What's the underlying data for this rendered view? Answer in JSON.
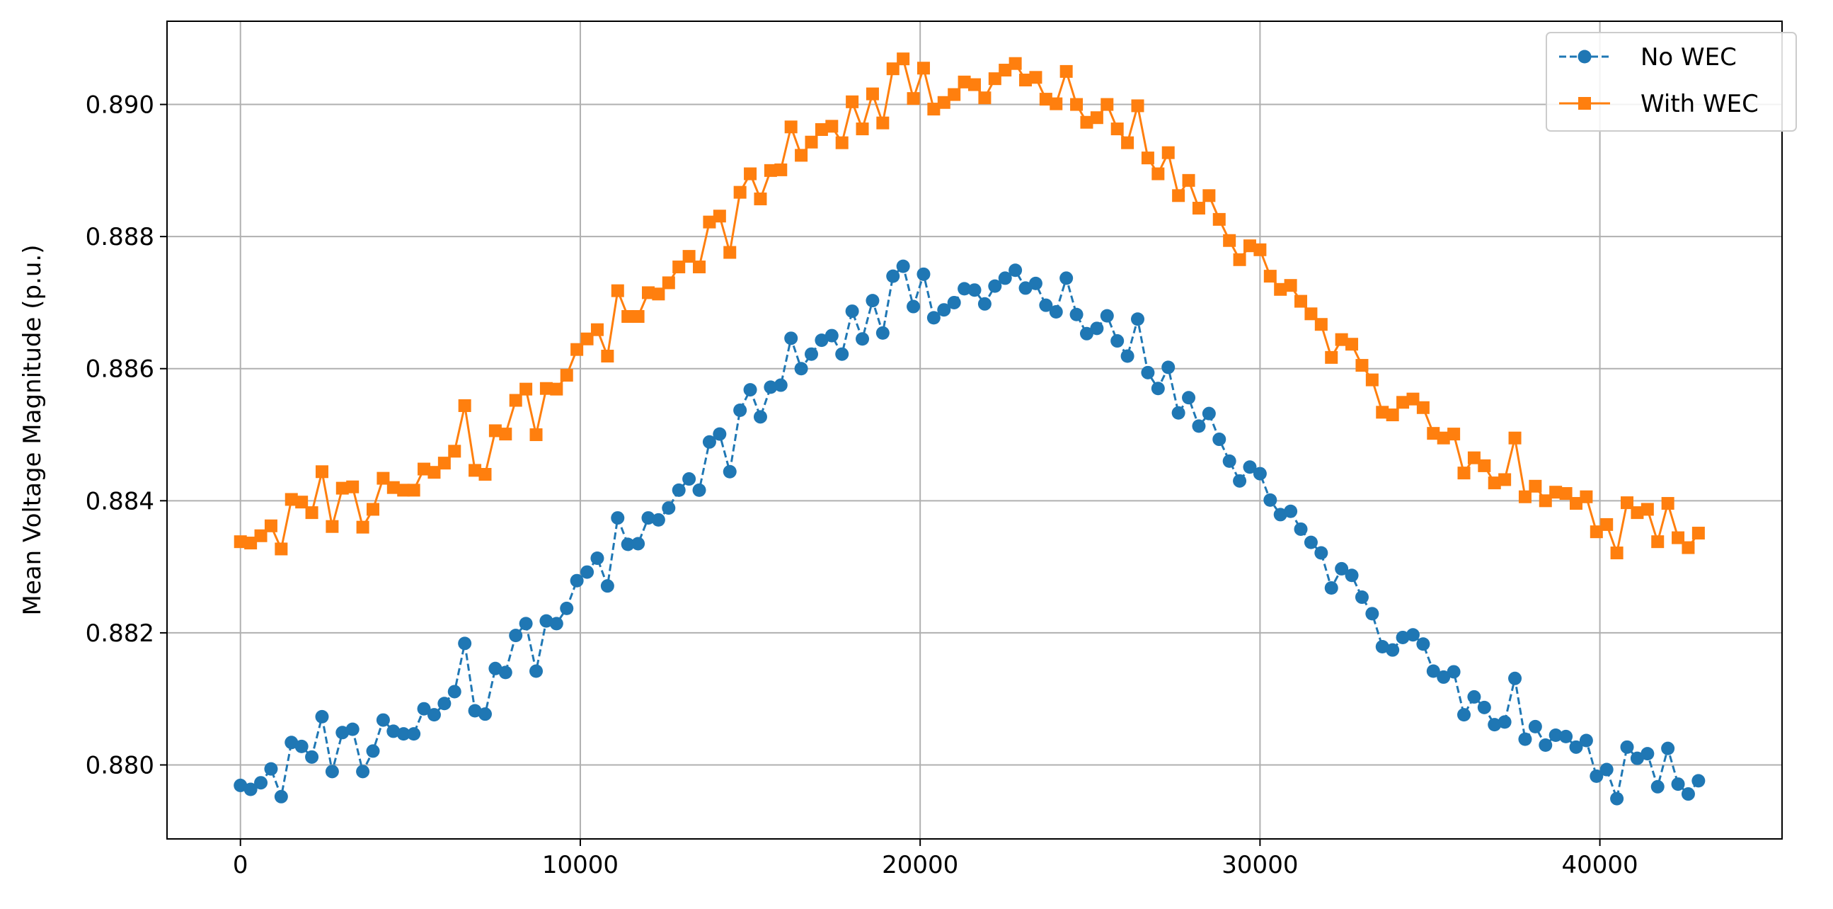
{
  "chart_data": {
    "type": "line",
    "title": "",
    "xlabel": "",
    "ylabel": "Mean Voltage Magnitude (p.u.)",
    "xlim": [
      -2160,
      45360
    ],
    "ylim": [
      0.87888,
      0.89126
    ],
    "xticks": [
      0,
      10000,
      20000,
      30000,
      40000
    ],
    "xtick_labels": [
      "0",
      "10000",
      "20000",
      "30000",
      "40000"
    ],
    "yticks": [
      0.88,
      0.882,
      0.884,
      0.886,
      0.888,
      0.89
    ],
    "ytick_labels": [
      "0.880",
      "0.882",
      "0.884",
      "0.886",
      "0.888",
      "0.890"
    ],
    "grid": true,
    "legend_position": "top-right",
    "x": [
      0,
      300,
      600,
      900,
      1200,
      1500,
      1800,
      2100,
      2400,
      2700,
      3000,
      3300,
      3600,
      3900,
      4200,
      4500,
      4800,
      5100,
      5400,
      5700,
      6000,
      6300,
      6600,
      6900,
      7200,
      7500,
      7800,
      8100,
      8400,
      8700,
      9000,
      9300,
      9600,
      9900,
      10200,
      10500,
      10800,
      11100,
      11400,
      11700,
      12000,
      12300,
      12600,
      12900,
      13200,
      13500,
      13800,
      14100,
      14400,
      14700,
      15000,
      15300,
      15600,
      15900,
      16200,
      16500,
      16800,
      17100,
      17400,
      17700,
      18000,
      18300,
      18600,
      18900,
      19200,
      19500,
      19800,
      20100,
      20400,
      20700,
      21000,
      21300,
      21600,
      21900,
      22200,
      22500,
      22800,
      23100,
      23400,
      23700,
      24000,
      24300,
      24600,
      24900,
      25200,
      25500,
      25800,
      26100,
      26400,
      26700,
      27000,
      27300,
      27600,
      27900,
      28200,
      28500,
      28800,
      29100,
      29400,
      29700,
      30000,
      30300,
      30600,
      30900,
      31200,
      31500,
      31800,
      32100,
      32400,
      32700,
      33000,
      33300,
      33600,
      33900,
      34200,
      34500,
      34800,
      35100,
      35400,
      35700,
      36000,
      36300,
      36600,
      36900,
      37200,
      37500,
      37800,
      38100,
      38400,
      38700,
      39000,
      39300,
      39600,
      39900,
      40200,
      40500,
      40800,
      41100,
      41400,
      41700,
      42000,
      42300,
      42600,
      42900
    ],
    "series": [
      {
        "name": "No WEC",
        "color": "#1f77b4",
        "linestyle": "dashed",
        "marker": "circle",
        "values": [
          0.87969,
          0.87963,
          0.87973,
          0.87994,
          0.87952,
          0.88034,
          0.88028,
          0.88012,
          0.88073,
          0.8799,
          0.88049,
          0.88054,
          0.8799,
          0.88021,
          0.88068,
          0.88051,
          0.88047,
          0.88047,
          0.88085,
          0.88076,
          0.88093,
          0.88111,
          0.88184,
          0.88082,
          0.88077,
          0.88146,
          0.8814,
          0.88196,
          0.88214,
          0.88142,
          0.88218,
          0.88214,
          0.88237,
          0.88279,
          0.88292,
          0.88313,
          0.88271,
          0.88374,
          0.88334,
          0.88335,
          0.88374,
          0.88371,
          0.88389,
          0.88416,
          0.88433,
          0.88416,
          0.88489,
          0.88501,
          0.88444,
          0.88537,
          0.88568,
          0.88527,
          0.88572,
          0.88575,
          0.88646,
          0.886,
          0.88622,
          0.88643,
          0.8865,
          0.88622,
          0.88687,
          0.88645,
          0.88703,
          0.88654,
          0.8874,
          0.88755,
          0.88694,
          0.88743,
          0.88677,
          0.88689,
          0.887,
          0.88721,
          0.88719,
          0.88698,
          0.88725,
          0.88737,
          0.88749,
          0.88722,
          0.88729,
          0.88696,
          0.88686,
          0.88737,
          0.88682,
          0.88653,
          0.88661,
          0.8868,
          0.88642,
          0.88619,
          0.88675,
          0.88594,
          0.8857,
          0.88602,
          0.88533,
          0.88556,
          0.88513,
          0.88532,
          0.88493,
          0.8846,
          0.8843,
          0.88451,
          0.88441,
          0.88401,
          0.88379,
          0.88384,
          0.88357,
          0.88337,
          0.88321,
          0.88268,
          0.88297,
          0.88287,
          0.88254,
          0.88229,
          0.88179,
          0.88174,
          0.88193,
          0.88197,
          0.88183,
          0.88142,
          0.88133,
          0.88141,
          0.88076,
          0.88103,
          0.88087,
          0.88061,
          0.88065,
          0.88131,
          0.88039,
          0.88058,
          0.8803,
          0.88045,
          0.88043,
          0.88027,
          0.88037,
          0.87983,
          0.87993,
          0.87949,
          0.88027,
          0.8801,
          0.88017,
          0.87967,
          0.88025,
          0.87971,
          0.87956,
          0.87976
        ]
      },
      {
        "name": "With WEC",
        "color": "#ff7f0e",
        "linestyle": "solid",
        "marker": "square",
        "values": [
          0.88338,
          0.88336,
          0.88347,
          0.88362,
          0.88327,
          0.88402,
          0.88398,
          0.88382,
          0.88444,
          0.88361,
          0.88419,
          0.88421,
          0.8836,
          0.88387,
          0.88434,
          0.8842,
          0.88416,
          0.88416,
          0.88448,
          0.88443,
          0.88457,
          0.88475,
          0.88544,
          0.88446,
          0.8844,
          0.88506,
          0.88501,
          0.88552,
          0.88569,
          0.885,
          0.8857,
          0.88569,
          0.8859,
          0.88629,
          0.88645,
          0.88659,
          0.88619,
          0.88718,
          0.88679,
          0.88679,
          0.88715,
          0.88713,
          0.8873,
          0.88754,
          0.8877,
          0.88754,
          0.88822,
          0.88831,
          0.88776,
          0.88867,
          0.88895,
          0.88857,
          0.889,
          0.88901,
          0.88966,
          0.88923,
          0.88943,
          0.88962,
          0.88967,
          0.88942,
          0.89004,
          0.88963,
          0.89016,
          0.88972,
          0.89054,
          0.89069,
          0.89009,
          0.89055,
          0.88993,
          0.89003,
          0.89015,
          0.89034,
          0.8903,
          0.8901,
          0.89039,
          0.89052,
          0.89062,
          0.89037,
          0.89041,
          0.89008,
          0.89001,
          0.8905,
          0.89,
          0.88973,
          0.8898,
          0.89,
          0.88963,
          0.88942,
          0.88998,
          0.88919,
          0.88895,
          0.88927,
          0.88862,
          0.88885,
          0.88843,
          0.88862,
          0.88826,
          0.88794,
          0.88765,
          0.88786,
          0.8878,
          0.8874,
          0.8872,
          0.88726,
          0.88702,
          0.88683,
          0.88667,
          0.88617,
          0.88644,
          0.88637,
          0.88605,
          0.88583,
          0.88534,
          0.8853,
          0.88549,
          0.88554,
          0.88541,
          0.88502,
          0.88495,
          0.88501,
          0.88442,
          0.88465,
          0.88453,
          0.88427,
          0.88432,
          0.88495,
          0.88406,
          0.88422,
          0.884,
          0.88413,
          0.88411,
          0.88396,
          0.88406,
          0.88353,
          0.88364,
          0.88321,
          0.88397,
          0.88382,
          0.88387,
          0.88338,
          0.88396,
          0.88344,
          0.88329,
          0.88351
        ]
      }
    ]
  }
}
